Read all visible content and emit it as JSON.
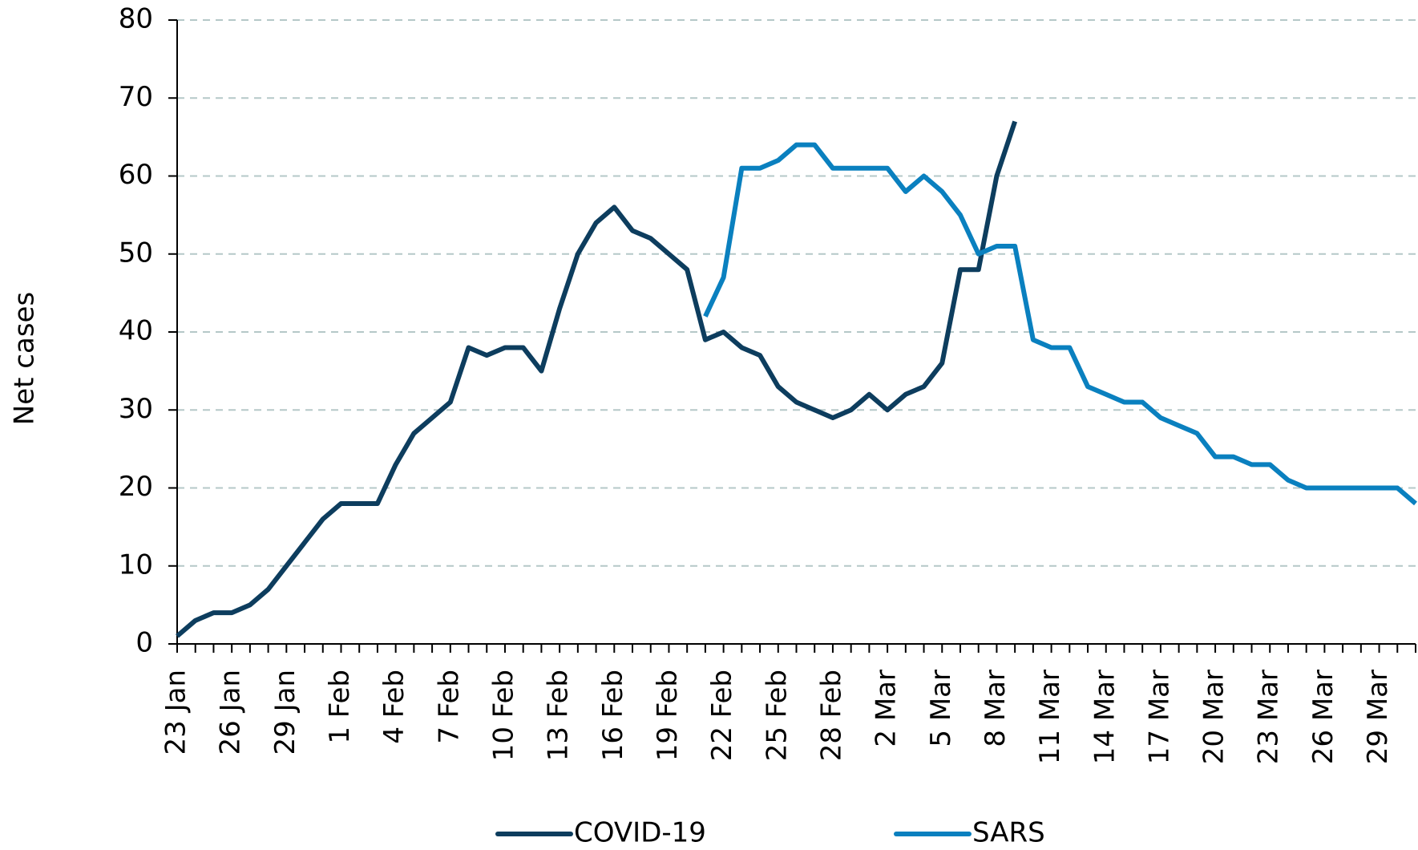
{
  "chart_data": {
    "type": "line",
    "y_label": "Net cases",
    "categories": [
      "23 Jan",
      null,
      null,
      "26 Jan",
      null,
      null,
      "29 Jan",
      null,
      null,
      "1 Feb",
      null,
      null,
      "4 Feb",
      null,
      null,
      "7 Feb",
      null,
      null,
      "10 Feb",
      null,
      null,
      "13 Feb",
      null,
      null,
      "16 Feb",
      null,
      null,
      "19 Feb",
      null,
      null,
      "22 Feb",
      null,
      null,
      "25 Feb",
      null,
      null,
      "28 Feb",
      null,
      null,
      "2 Mar",
      null,
      null,
      "5 Mar",
      null,
      null,
      "8 Mar",
      null,
      null,
      "11 Mar",
      null,
      null,
      "14 Mar",
      null,
      null,
      "17 Mar",
      null,
      null,
      "20 Mar",
      null,
      null,
      "23 Mar",
      null,
      null,
      "26 Mar",
      null,
      null,
      "29 Mar",
      null,
      null
    ],
    "series": [
      {
        "name": "COVID-19",
        "color": "#0d3d5e",
        "values": [
          1,
          3,
          4,
          4,
          5,
          7,
          10,
          13,
          16,
          18,
          18,
          18,
          23,
          27,
          29,
          31,
          38,
          37,
          38,
          38,
          35,
          43,
          50,
          54,
          56,
          53,
          52,
          50,
          48,
          39,
          40,
          38,
          37,
          33,
          31,
          30,
          29,
          30,
          32,
          30,
          32,
          33,
          36,
          48,
          48,
          60,
          67,
          null,
          null,
          null,
          null,
          null,
          null,
          null,
          null,
          null,
          null,
          null,
          null,
          null,
          null,
          null,
          null,
          null,
          null,
          null,
          null,
          null,
          null
        ]
      },
      {
        "name": "SARS",
        "color": "#0a80bf",
        "values": [
          null,
          null,
          null,
          null,
          null,
          null,
          null,
          null,
          null,
          null,
          null,
          null,
          null,
          null,
          null,
          null,
          null,
          null,
          null,
          null,
          null,
          null,
          null,
          null,
          null,
          null,
          null,
          null,
          null,
          42,
          47,
          61,
          61,
          62,
          64,
          64,
          61,
          61,
          61,
          61,
          58,
          60,
          58,
          55,
          50,
          51,
          51,
          39,
          38,
          38,
          33,
          32,
          31,
          31,
          29,
          28,
          27,
          24,
          24,
          23,
          23,
          21,
          20,
          20,
          20,
          20,
          20,
          20,
          18
        ]
      }
    ],
    "ylim": [
      0,
      80
    ],
    "yticks": [
      0,
      10,
      20,
      30,
      40,
      50,
      60,
      70,
      80
    ],
    "grid": true,
    "legend": "bottom"
  }
}
